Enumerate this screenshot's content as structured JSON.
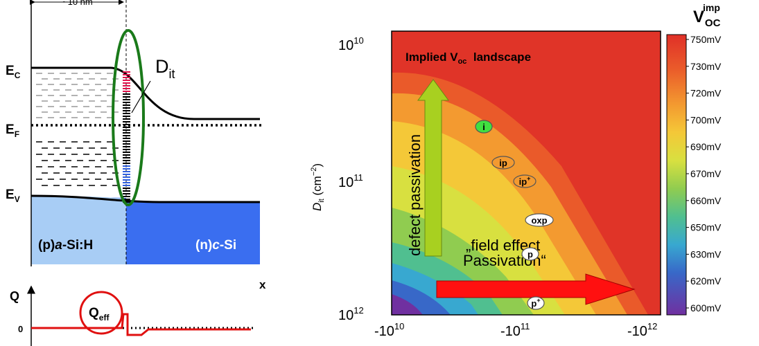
{
  "band_diagram": {
    "width_label": "~10 nm",
    "levels": [
      {
        "main": "E",
        "sub": "C"
      },
      {
        "main": "E",
        "sub": "F"
      },
      {
        "main": "E",
        "sub": "V"
      }
    ],
    "dit_label": {
      "main": "D",
      "sub": "it"
    },
    "left_region": [
      "(p)",
      "a",
      "-Si:H"
    ],
    "right_region": [
      "(n)",
      "c",
      "-Si"
    ],
    "x_label": "x",
    "charge_axis": "Q",
    "charge_zero": "0",
    "qeff_label": {
      "main": "Q",
      "sub": "eff"
    }
  },
  "landscape": {
    "title": {
      "main": "Implied V",
      "sub": "oc",
      "rest": "  landscape"
    },
    "y_axis_label": {
      "main": "D",
      "sub": "it",
      "rest": " (cm",
      "sup": "−2",
      "end": ")"
    },
    "y_ticks": [
      {
        "base": "10",
        "exp": "10"
      },
      {
        "base": "10",
        "exp": "11"
      },
      {
        "base": "10",
        "exp": "12"
      }
    ],
    "x_ticks": [
      {
        "base": "-10",
        "exp": "10"
      },
      {
        "base": "-10",
        "exp": "11"
      },
      {
        "base": "-10",
        "exp": "12"
      }
    ],
    "vertical_arrow": "defect passivation",
    "horizontal_arrow": [
      "„field effect",
      "Passivation“"
    ],
    "points": [
      {
        "main": "i"
      },
      {
        "main": "ip"
      },
      {
        "main": "ip",
        "sup": "+"
      },
      {
        "main": "oxp"
      },
      {
        "main": "p"
      },
      {
        "main": "p",
        "sup": "+"
      }
    ],
    "colorbar_title": {
      "main": "V",
      "sub": "OC",
      "sup": "imp"
    },
    "colorbar_ticks": [
      "750mV",
      "730mV",
      "720mV",
      "700mV",
      "690mV",
      "670mV",
      "660mV",
      "650mV",
      "630mV",
      "620mV",
      "600mV"
    ]
  }
}
